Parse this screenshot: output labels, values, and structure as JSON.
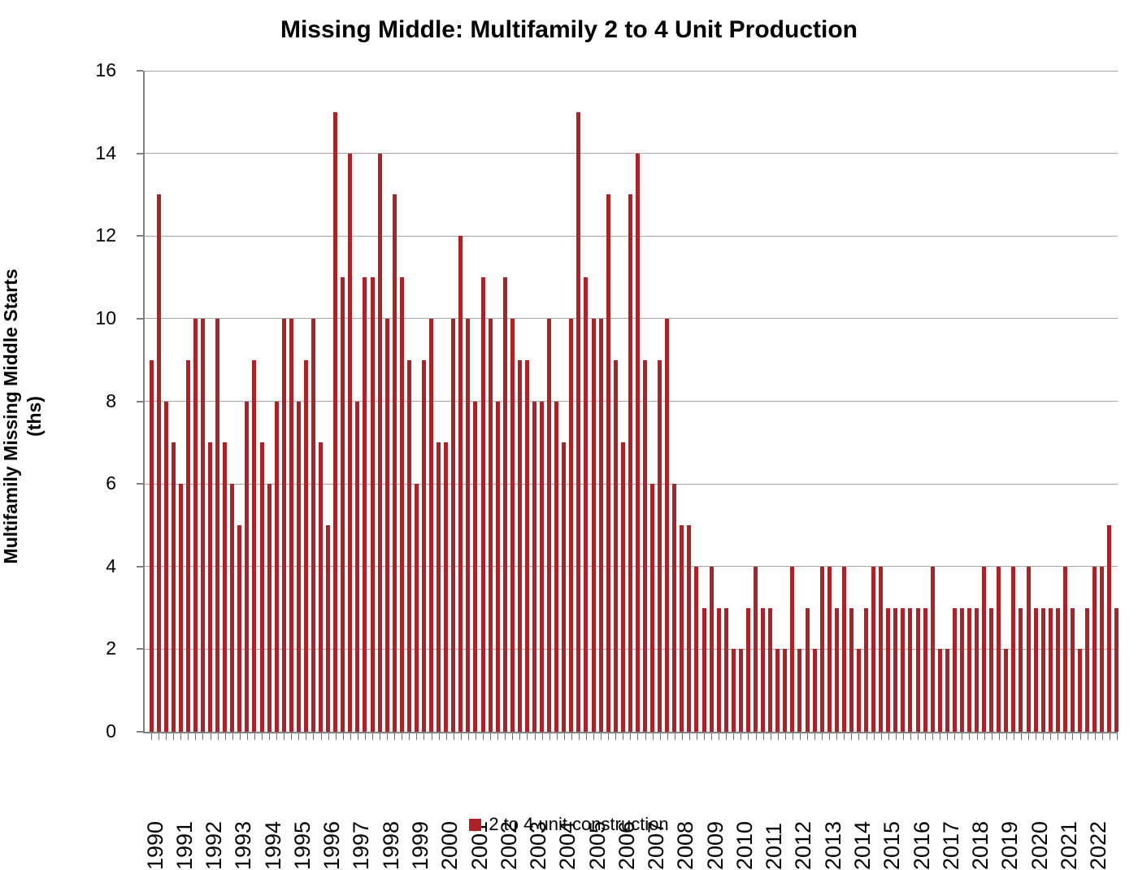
{
  "chart_data": {
    "type": "bar",
    "title": "Missing Middle: Multifamily 2 to 4 Unit Production",
    "ylabel": "Multifamily Missing Middle Starts (ths)",
    "xlabel": "",
    "ylim": [
      0,
      16
    ],
    "ytick_step": 2,
    "ytick_labels": [
      "0",
      "2",
      "4",
      "6",
      "8",
      "10",
      "12",
      "14",
      "16"
    ],
    "grid": "horizontal-only",
    "legend": {
      "label": "2 to 4 unit construction",
      "position": "bottom-center"
    },
    "bar_color": "#b02025",
    "gridline_color": "#a6a6a6",
    "axis_color": "#808080",
    "x_frequency": "quarterly",
    "years": [
      {
        "year": "1990",
        "values": [
          9,
          13,
          8,
          7
        ]
      },
      {
        "year": "1991",
        "values": [
          6,
          9,
          10,
          10
        ]
      },
      {
        "year": "1992",
        "values": [
          7,
          10,
          7,
          6
        ]
      },
      {
        "year": "1993",
        "values": [
          5,
          8,
          9,
          7
        ]
      },
      {
        "year": "1994",
        "values": [
          6,
          8,
          10,
          10
        ]
      },
      {
        "year": "1995",
        "values": [
          8,
          9,
          10,
          7
        ]
      },
      {
        "year": "1996",
        "values": [
          5,
          15,
          11,
          14
        ]
      },
      {
        "year": "1997",
        "values": [
          8,
          11,
          11,
          14
        ]
      },
      {
        "year": "1998",
        "values": [
          10,
          13,
          11,
          9
        ]
      },
      {
        "year": "1999",
        "values": [
          6,
          9,
          10,
          7
        ]
      },
      {
        "year": "2000",
        "values": [
          7,
          10,
          12,
          10
        ]
      },
      {
        "year": "2001",
        "values": [
          8,
          11,
          10,
          8
        ]
      },
      {
        "year": "2002",
        "values": [
          11,
          10,
          9,
          9
        ]
      },
      {
        "year": "2003",
        "values": [
          8,
          8,
          10,
          8
        ]
      },
      {
        "year": "2004",
        "values": [
          7,
          10,
          15,
          11
        ]
      },
      {
        "year": "2005",
        "values": [
          10,
          10,
          13,
          9
        ]
      },
      {
        "year": "2006",
        "values": [
          7,
          13,
          14,
          9
        ]
      },
      {
        "year": "2007",
        "values": [
          6,
          9,
          10,
          6
        ]
      },
      {
        "year": "2008",
        "values": [
          5,
          5,
          4,
          3
        ]
      },
      {
        "year": "2009",
        "values": [
          4,
          3,
          3,
          2
        ]
      },
      {
        "year": "2010",
        "values": [
          2,
          3,
          4,
          3
        ]
      },
      {
        "year": "2011",
        "values": [
          3,
          2,
          2,
          4
        ]
      },
      {
        "year": "2012",
        "values": [
          2,
          3,
          2,
          4
        ]
      },
      {
        "year": "2013",
        "values": [
          4,
          3,
          4,
          3
        ]
      },
      {
        "year": "2014",
        "values": [
          2,
          3,
          4,
          4
        ]
      },
      {
        "year": "2015",
        "values": [
          3,
          3,
          3,
          3
        ]
      },
      {
        "year": "2016",
        "values": [
          3,
          3,
          4,
          2
        ]
      },
      {
        "year": "2017",
        "values": [
          2,
          3,
          3,
          3
        ]
      },
      {
        "year": "2018",
        "values": [
          3,
          4,
          3,
          4
        ]
      },
      {
        "year": "2019",
        "values": [
          2,
          4,
          3,
          4
        ]
      },
      {
        "year": "2020",
        "values": [
          3,
          3,
          3,
          3
        ]
      },
      {
        "year": "2021",
        "values": [
          4,
          3,
          2,
          3
        ]
      },
      {
        "year": "2022",
        "values": [
          4,
          4,
          5,
          3
        ]
      }
    ]
  }
}
